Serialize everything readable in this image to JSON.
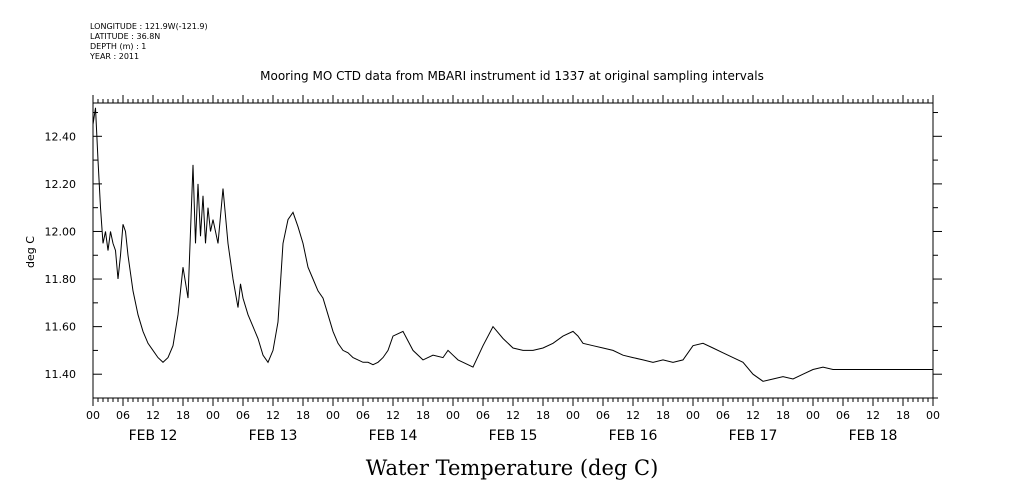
{
  "metadata": {
    "longitude": "LONGITUDE : 121.9W(-121.9)",
    "latitude": "LATITUDE : 36.8N",
    "depth": "DEPTH (m) : 1",
    "year": "YEAR : 2011"
  },
  "footer_title": "Water Temperature (deg C)",
  "chart_data": {
    "type": "line",
    "title": "Mooring MO CTD data from MBARI instrument id 1337 at original sampling intervals",
    "ylabel": "deg C",
    "xlabel": "",
    "ylim": [
      11.3,
      12.54
    ],
    "xlim_hours": [
      0,
      168
    ],
    "y_ticks": [
      "11.40",
      "11.60",
      "11.80",
      "12.00",
      "12.20",
      "12.40"
    ],
    "x_hour_ticks": [
      "00",
      "06",
      "12",
      "18",
      "00",
      "06",
      "12",
      "18",
      "00",
      "06",
      "12",
      "18",
      "00",
      "06",
      "12",
      "18",
      "00",
      "06",
      "12",
      "18",
      "00",
      "06",
      "12",
      "18",
      "00",
      "06",
      "12",
      "18",
      "00"
    ],
    "day_labels": [
      "FEB 12",
      "FEB 13",
      "FEB 14",
      "FEB 15",
      "FEB 16",
      "FEB 17",
      "FEB 18"
    ],
    "grid": false,
    "series": [
      {
        "x_hours": [
          0,
          0.5,
          1,
          1.5,
          2,
          2.5,
          3,
          3.5,
          4,
          4.5,
          5,
          5.5,
          6,
          6.5,
          7,
          8,
          9,
          10,
          11,
          12,
          13,
          14,
          15,
          16,
          17,
          18,
          19,
          20,
          20.5,
          21,
          21.5,
          22,
          22.5,
          23,
          23.5,
          24,
          25,
          26,
          27,
          28,
          29,
          29.5,
          30,
          31,
          32,
          33,
          34,
          35,
          36,
          37,
          38,
          39,
          40,
          41,
          42,
          43,
          44,
          45,
          46,
          47,
          48,
          49,
          50,
          51,
          52,
          53,
          54,
          55,
          56,
          57,
          58,
          59,
          60,
          62,
          64,
          66,
          68,
          70,
          71,
          72,
          73,
          74,
          75,
          76,
          78,
          80,
          82,
          84,
          86,
          88,
          90,
          92,
          94,
          96,
          97,
          98,
          100,
          102,
          104,
          106,
          108,
          110,
          112,
          114,
          116,
          118,
          120,
          122,
          124,
          126,
          128,
          130,
          132,
          134,
          136,
          138,
          140,
          142,
          144,
          146,
          148,
          150,
          152,
          154,
          156,
          158,
          160,
          162,
          164,
          166,
          168
        ],
        "values": [
          12.45,
          12.52,
          12.3,
          12.1,
          11.95,
          12.0,
          11.92,
          12.0,
          11.95,
          11.92,
          11.8,
          11.9,
          12.03,
          12.0,
          11.9,
          11.75,
          11.65,
          11.58,
          11.53,
          11.5,
          11.47,
          11.45,
          11.47,
          11.52,
          11.65,
          11.85,
          11.72,
          12.28,
          11.95,
          12.2,
          11.98,
          12.15,
          11.95,
          12.1,
          12.0,
          12.05,
          11.95,
          12.18,
          11.95,
          11.8,
          11.68,
          11.78,
          11.72,
          11.65,
          11.6,
          11.55,
          11.48,
          11.45,
          11.5,
          11.62,
          11.95,
          12.05,
          12.08,
          12.02,
          11.95,
          11.85,
          11.8,
          11.75,
          11.72,
          11.65,
          11.58,
          11.53,
          11.5,
          11.49,
          11.47,
          11.46,
          11.45,
          11.45,
          11.44,
          11.45,
          11.47,
          11.5,
          11.56,
          11.58,
          11.5,
          11.46,
          11.48,
          11.47,
          11.5,
          11.48,
          11.46,
          11.45,
          11.44,
          11.43,
          11.52,
          11.6,
          11.55,
          11.51,
          11.5,
          11.5,
          11.51,
          11.53,
          11.56,
          11.58,
          11.56,
          11.53,
          11.52,
          11.51,
          11.5,
          11.48,
          11.47,
          11.46,
          11.45,
          11.46,
          11.45,
          11.46,
          11.52,
          11.53,
          11.51,
          11.49,
          11.47,
          11.45,
          11.4,
          11.37,
          11.38,
          11.39,
          11.38,
          11.4,
          11.42,
          11.43,
          11.42,
          11.42,
          11.42,
          11.42,
          11.42,
          11.42,
          11.42,
          11.42,
          11.42,
          11.42,
          11.42
        ]
      }
    ]
  }
}
